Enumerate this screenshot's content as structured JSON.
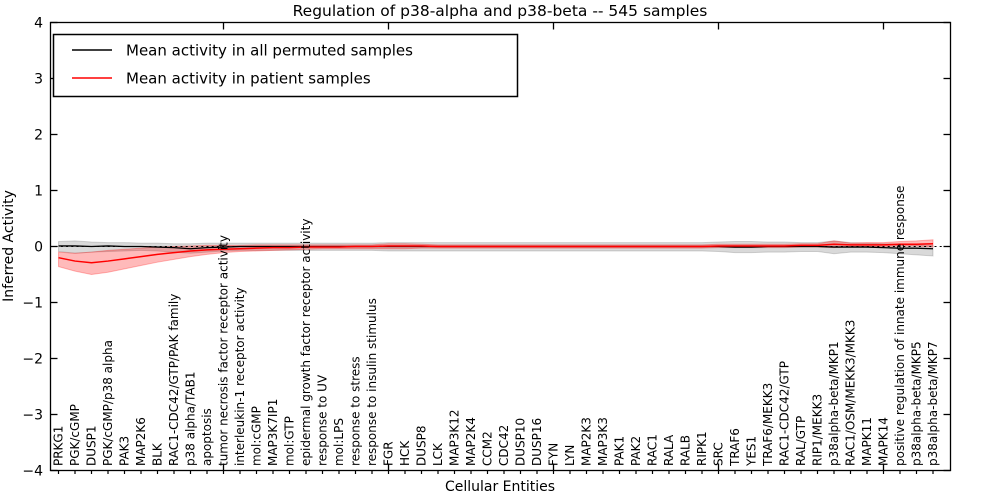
{
  "chart_data": {
    "type": "line",
    "title": "Regulation of p38-alpha and p38-beta -- 545 samples",
    "xlabel": "Cellular Entities",
    "ylabel": "Inferred Activity",
    "ylim": [
      -4,
      4
    ],
    "ytick_values": [
      4,
      3,
      2,
      1,
      0,
      -1,
      -2,
      -3,
      -4
    ],
    "ytick_labels": [
      "4",
      "3",
      "2",
      "1",
      "0",
      "−1",
      "−2",
      "−3",
      "−4"
    ],
    "grid": false,
    "legend_position": "upper left",
    "zero_line": {
      "style": "dotted",
      "color": "#000000",
      "y": 0
    },
    "categories": [
      "PRKG1",
      "PGK/cGMP",
      "DUSP1",
      "PGK/cGMP/p38 alpha",
      "PAK3",
      "MAP2K6",
      "BLK",
      "RAC1-CDC42/GTP/PAK family",
      "p38 alpha/TAB1",
      "apoptosis",
      "tumor necrosis factor receptor activity",
      "interleukin-1 receptor activity",
      "mol:cGMP",
      "MAP3K7IP1",
      "mol:GTP",
      "epidermal growth factor receptor activity",
      "response to UV",
      "mol:LPS",
      "response to stress",
      "response to insulin stimulus",
      "FGR",
      "HCK",
      "DUSP8",
      "LCK",
      "MAP3K12",
      "MAP2K4",
      "CCM2",
      "CDC42",
      "DUSP10",
      "DUSP16",
      "FYN",
      "LYN",
      "MAP2K3",
      "MAP3K3",
      "PAK1",
      "PAK2",
      "RAC1",
      "RALA",
      "RALB",
      "RIPK1",
      "SRC",
      "TRAF6",
      "YES1",
      "TRAF6/MEKK3",
      "RAC1-CDC42/GTP",
      "RAL/GTP",
      "RIP1/MEKK3",
      "p38alpha-beta/MKP1",
      "RAC1/OSM/MEKK3/MKK3",
      "MAPK11",
      "MAPK14",
      "positive regulation of innate immune response",
      "p38alpha-beta/MKP5",
      "p38alpha-beta/MKP7"
    ],
    "series": [
      {
        "name": "Mean activity in all permuted samples",
        "color": "#000000",
        "band_color": "rgba(0,0,0,0.15)",
        "values": [
          0.01,
          0.01,
          0.0,
          0.01,
          0.0,
          0.0,
          -0.01,
          -0.02,
          -0.04,
          -0.02,
          -0.01,
          0.0,
          0.0,
          0.0,
          0.0,
          0.0,
          0.0,
          0.0,
          0.0,
          0.0,
          0.0,
          0.0,
          0.0,
          0.0,
          0.0,
          0.0,
          0.0,
          0.0,
          0.0,
          0.0,
          0.0,
          0.0,
          0.0,
          0.0,
          0.0,
          0.0,
          0.0,
          0.0,
          0.0,
          0.0,
          0.0,
          -0.01,
          -0.01,
          0.0,
          0.0,
          0.0,
          0.0,
          -0.01,
          -0.01,
          -0.01,
          -0.02,
          -0.03,
          -0.03,
          -0.04
        ],
        "band_hi": [
          0.09,
          0.1,
          0.08,
          0.07,
          0.07,
          0.06,
          0.06,
          0.05,
          0.05,
          0.06,
          0.06,
          0.06,
          0.06,
          0.06,
          0.06,
          0.06,
          0.06,
          0.06,
          0.06,
          0.06,
          0.07,
          0.07,
          0.07,
          0.07,
          0.07,
          0.07,
          0.07,
          0.07,
          0.07,
          0.07,
          0.07,
          0.07,
          0.07,
          0.07,
          0.07,
          0.07,
          0.07,
          0.07,
          0.07,
          0.07,
          0.08,
          0.09,
          0.09,
          0.08,
          0.08,
          0.07,
          0.07,
          0.1,
          0.07,
          0.06,
          0.05,
          0.04,
          0.03,
          0.02
        ],
        "band_lo": [
          -0.09,
          -0.12,
          -0.1,
          -0.09,
          -0.08,
          -0.07,
          -0.08,
          -0.1,
          -0.12,
          -0.1,
          -0.08,
          -0.07,
          -0.07,
          -0.07,
          -0.07,
          -0.07,
          -0.07,
          -0.07,
          -0.07,
          -0.07,
          -0.08,
          -0.08,
          -0.08,
          -0.08,
          -0.08,
          -0.08,
          -0.08,
          -0.08,
          -0.08,
          -0.08,
          -0.08,
          -0.08,
          -0.08,
          -0.08,
          -0.08,
          -0.08,
          -0.08,
          -0.08,
          -0.08,
          -0.08,
          -0.09,
          -0.11,
          -0.11,
          -0.1,
          -0.1,
          -0.09,
          -0.09,
          -0.13,
          -0.1,
          -0.1,
          -0.11,
          -0.13,
          -0.15,
          -0.17
        ]
      },
      {
        "name": "Mean activity in patient samples",
        "color": "#ff0000",
        "band_color": "rgba(255,0,0,0.27)",
        "values": [
          -0.2,
          -0.26,
          -0.29,
          -0.26,
          -0.22,
          -0.18,
          -0.14,
          -0.11,
          -0.08,
          -0.06,
          -0.05,
          -0.04,
          -0.03,
          -0.02,
          -0.02,
          -0.01,
          -0.01,
          -0.01,
          0.0,
          0.0,
          0.01,
          0.01,
          0.01,
          0.0,
          0.0,
          0.0,
          0.0,
          0.0,
          0.0,
          0.0,
          0.0,
          0.0,
          0.0,
          0.0,
          0.0,
          0.0,
          0.0,
          0.0,
          0.0,
          0.0,
          0.01,
          0.01,
          0.01,
          0.01,
          0.01,
          0.02,
          0.02,
          0.04,
          0.03,
          0.03,
          0.03,
          0.04,
          0.04,
          0.05
        ],
        "band_hi": [
          -0.1,
          -0.12,
          -0.1,
          -0.07,
          -0.05,
          -0.03,
          -0.01,
          0.0,
          0.01,
          0.02,
          0.02,
          0.02,
          0.03,
          0.03,
          0.03,
          0.03,
          0.03,
          0.03,
          0.03,
          0.03,
          0.05,
          0.05,
          0.04,
          0.03,
          0.03,
          0.03,
          0.03,
          0.03,
          0.03,
          0.03,
          0.03,
          0.03,
          0.03,
          0.03,
          0.03,
          0.03,
          0.03,
          0.03,
          0.03,
          0.03,
          0.04,
          0.04,
          0.04,
          0.04,
          0.04,
          0.05,
          0.05,
          0.1,
          0.06,
          0.07,
          0.07,
          0.09,
          0.1,
          0.12
        ],
        "band_lo": [
          -0.36,
          -0.44,
          -0.5,
          -0.46,
          -0.4,
          -0.34,
          -0.28,
          -0.23,
          -0.18,
          -0.14,
          -0.11,
          -0.09,
          -0.08,
          -0.07,
          -0.06,
          -0.05,
          -0.04,
          -0.04,
          -0.04,
          -0.04,
          -0.04,
          -0.04,
          -0.03,
          -0.03,
          -0.03,
          -0.03,
          -0.03,
          -0.03,
          -0.03,
          -0.03,
          -0.03,
          -0.03,
          -0.03,
          -0.03,
          -0.03,
          -0.03,
          -0.03,
          -0.03,
          -0.03,
          -0.03,
          -0.02,
          -0.02,
          -0.02,
          -0.02,
          -0.02,
          -0.01,
          -0.01,
          -0.02,
          0.0,
          0.0,
          0.0,
          0.01,
          0.01,
          -0.01
        ]
      }
    ]
  }
}
